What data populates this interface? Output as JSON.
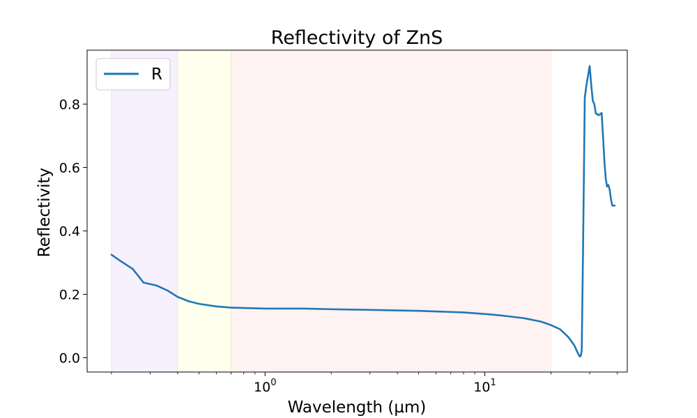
{
  "chart_data": {
    "type": "line",
    "title": "Reflectivity of ZnS",
    "xlabel": "Wavelength (µm)",
    "ylabel": "Reflectivity",
    "x_scale": "log",
    "xlim": [
      0.155,
      44.5
    ],
    "ylim": [
      -0.045,
      0.97
    ],
    "grid": false,
    "legend_position": "top-left",
    "x_ticks": [
      {
        "base": "10",
        "exp": "0",
        "value": 1
      },
      {
        "base": "10",
        "exp": "1",
        "value": 10
      }
    ],
    "y_ticks": [
      {
        "label": "0.0",
        "value": 0.0
      },
      {
        "label": "0.2",
        "value": 0.2
      },
      {
        "label": "0.4",
        "value": 0.4
      },
      {
        "label": "0.6",
        "value": 0.6
      },
      {
        "label": "0.8",
        "value": 0.8
      }
    ],
    "bands": [
      {
        "x_range": [
          0.2,
          0.4
        ],
        "color": "#8a2be2",
        "opacity": 0.07
      },
      {
        "x_range": [
          0.4,
          0.7
        ],
        "color": "#ffff00",
        "opacity": 0.07
      },
      {
        "x_range": [
          0.7,
          20.0
        ],
        "color": "#ff0000",
        "opacity": 0.05
      }
    ],
    "series": [
      {
        "name": "R",
        "color": "#1f77b4",
        "x": [
          0.2,
          0.22,
          0.25,
          0.28,
          0.32,
          0.36,
          0.4,
          0.45,
          0.5,
          0.6,
          0.7,
          0.8,
          1.0,
          1.5,
          2.0,
          3.0,
          5.0,
          8.0,
          10.0,
          12.0,
          15.0,
          18.0,
          20.0,
          22.0,
          24.0,
          25.5,
          26.5,
          27.0,
          27.3,
          27.6,
          28.0,
          28.5,
          29.0,
          29.5,
          30.0,
          30.5,
          31.0,
          31.5,
          32.0,
          33.0,
          34.0,
          34.5,
          35.0,
          35.5,
          36.0,
          36.5,
          37.0,
          37.5,
          38.0,
          39.0
        ],
        "y": [
          0.325,
          0.305,
          0.28,
          0.237,
          0.228,
          0.212,
          0.192,
          0.178,
          0.17,
          0.162,
          0.158,
          0.157,
          0.155,
          0.155,
          0.153,
          0.151,
          0.148,
          0.143,
          0.138,
          0.133,
          0.125,
          0.114,
          0.103,
          0.09,
          0.065,
          0.04,
          0.015,
          0.004,
          0.005,
          0.02,
          0.35,
          0.82,
          0.86,
          0.89,
          0.92,
          0.86,
          0.81,
          0.8,
          0.77,
          0.765,
          0.772,
          0.7,
          0.62,
          0.565,
          0.54,
          0.545,
          0.53,
          0.5,
          0.48,
          0.48
        ]
      }
    ]
  }
}
